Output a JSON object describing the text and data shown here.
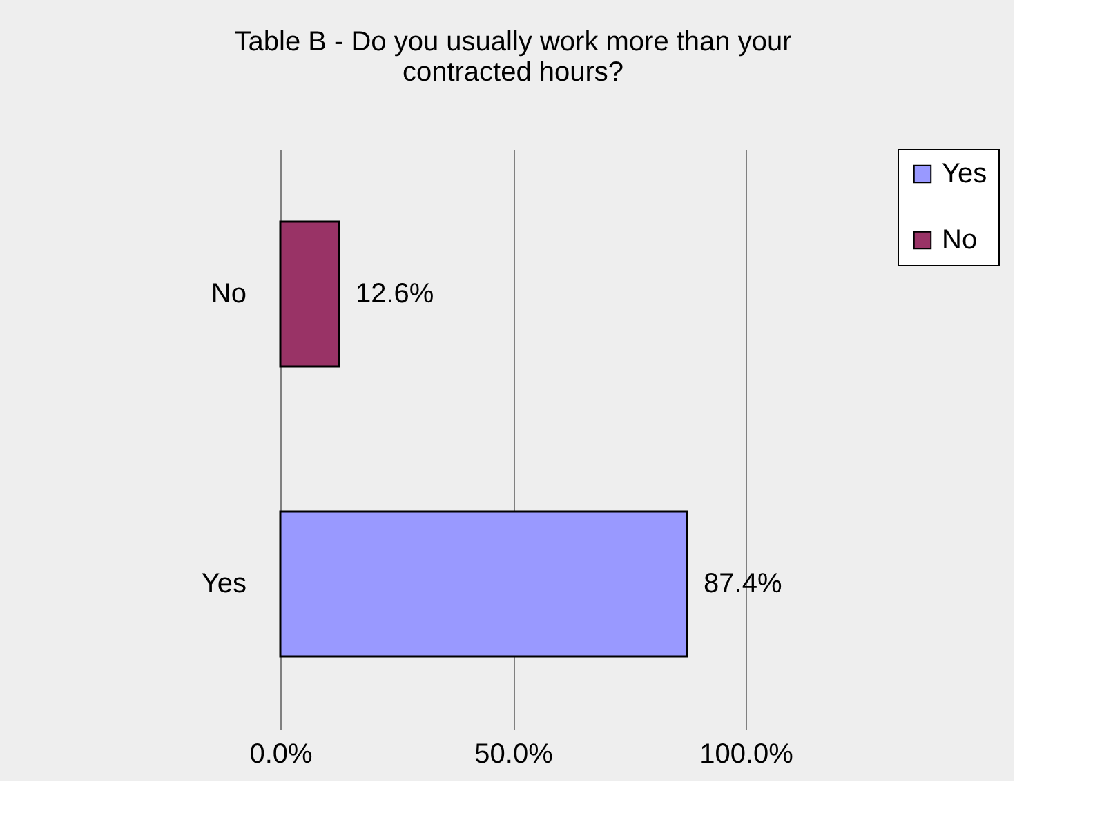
{
  "chart_data": {
    "type": "bar",
    "orientation": "horizontal",
    "title": "Table B - Do you usually work more than your contracted hours?",
    "categories": [
      "No",
      "Yes"
    ],
    "series": [
      {
        "name": "Yes",
        "color": "#9999ff",
        "values": [
          null,
          87.4
        ],
        "value_labels": [
          null,
          "87.4%"
        ]
      },
      {
        "name": "No",
        "color": "#993366",
        "values": [
          12.6,
          null
        ],
        "value_labels": [
          "12.6%",
          null
        ]
      }
    ],
    "xlim": [
      0,
      100
    ],
    "xticks": [
      {
        "value": 0,
        "label": "0.0%"
      },
      {
        "value": 50,
        "label": "50.0%"
      },
      {
        "value": 100,
        "label": "100.0%"
      }
    ],
    "grid": "x",
    "legend": "right"
  }
}
